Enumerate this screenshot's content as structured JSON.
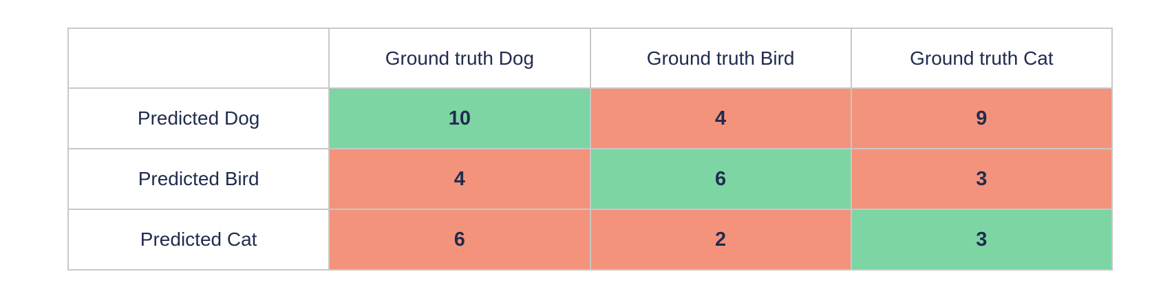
{
  "colors": {
    "correct": "#7cd5a2",
    "incorrect": "#f3937b",
    "text": "#202c4e",
    "border": "#c8c8c8"
  },
  "table": {
    "corner_label": "",
    "column_headers": [
      "Ground truth Dog",
      "Ground truth Bird",
      "Ground truth Cat"
    ],
    "rows": [
      {
        "label": "Predicted Dog",
        "cells": [
          {
            "value": "10",
            "state": "correct"
          },
          {
            "value": "4",
            "state": "incorrect"
          },
          {
            "value": "9",
            "state": "incorrect"
          }
        ]
      },
      {
        "label": "Predicted Bird",
        "cells": [
          {
            "value": "4",
            "state": "incorrect"
          },
          {
            "value": "6",
            "state": "correct"
          },
          {
            "value": "3",
            "state": "incorrect"
          }
        ]
      },
      {
        "label": "Predicted Cat",
        "cells": [
          {
            "value": "6",
            "state": "incorrect"
          },
          {
            "value": "2",
            "state": "incorrect"
          },
          {
            "value": "3",
            "state": "correct"
          }
        ]
      }
    ]
  },
  "chart_data": {
    "type": "table",
    "columns": [
      "",
      "Ground truth Dog",
      "Ground truth Bird",
      "Ground truth Cat"
    ],
    "rows": [
      [
        "Predicted Dog",
        10,
        4,
        9
      ],
      [
        "Predicted Bird",
        4,
        6,
        3
      ],
      [
        "Predicted Cat",
        6,
        2,
        3
      ]
    ],
    "cell_highlight_rule": "diagonal cells (prediction matches ground truth) are green, all other value cells are salmon",
    "legend_position": "none",
    "grid": true
  }
}
